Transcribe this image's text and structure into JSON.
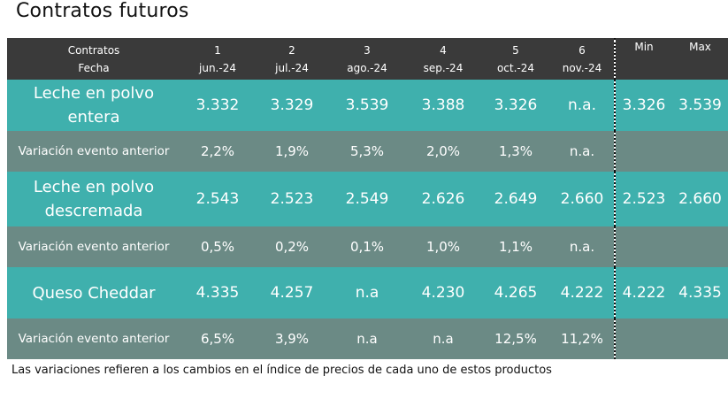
{
  "title": "Contratos futuros",
  "header": {
    "label_line1": "Contratos",
    "label_line2": "Fecha",
    "columns": [
      {
        "num": "1",
        "date": "jun.-24"
      },
      {
        "num": "2",
        "date": "jul.-24"
      },
      {
        "num": "3",
        "date": "ago.-24"
      },
      {
        "num": "4",
        "date": "sep.-24"
      },
      {
        "num": "5",
        "date": "oct.-24"
      },
      {
        "num": "6",
        "date": "nov.-24"
      }
    ],
    "min": "Min",
    "max": "Max"
  },
  "rows": [
    {
      "label": "Leche en polvo entera",
      "values": [
        "3.332",
        "3.329",
        "3.539",
        "3.388",
        "3.326",
        "n.a."
      ],
      "min": "3.326",
      "max": "3.539"
    },
    {
      "label": "Variación evento anterior",
      "values": [
        "2,2%",
        "1,9%",
        "5,3%",
        "2,0%",
        "1,3%",
        "n.a."
      ],
      "min": "",
      "max": ""
    },
    {
      "label": "Leche en polvo descremada",
      "values": [
        "2.543",
        "2.523",
        "2.549",
        "2.626",
        "2.649",
        "2.660"
      ],
      "min": "2.523",
      "max": "2.660"
    },
    {
      "label": "Variación evento anterior",
      "values": [
        "0,5%",
        "0,2%",
        "0,1%",
        "1,0%",
        "1,1%",
        "n.a."
      ],
      "min": "",
      "max": ""
    },
    {
      "label": "Queso Cheddar",
      "values": [
        "4.335",
        "4.257",
        "n.a",
        "4.230",
        "4.265",
        "4.222"
      ],
      "min": "4.222",
      "max": "4.335"
    },
    {
      "label": "Variación evento anterior",
      "values": [
        "6,5%",
        "3,9%",
        "n.a",
        "n.a",
        "12,5%",
        "11,2%"
      ],
      "min": "",
      "max": ""
    }
  ],
  "footnote": "Las variaciones refieren a los cambios en el índice de precios de cada uno de estos productos",
  "colors": {
    "header": "#3a3a3a",
    "product_row": "#3fb0ad",
    "variation_row": "#6b8a85"
  }
}
